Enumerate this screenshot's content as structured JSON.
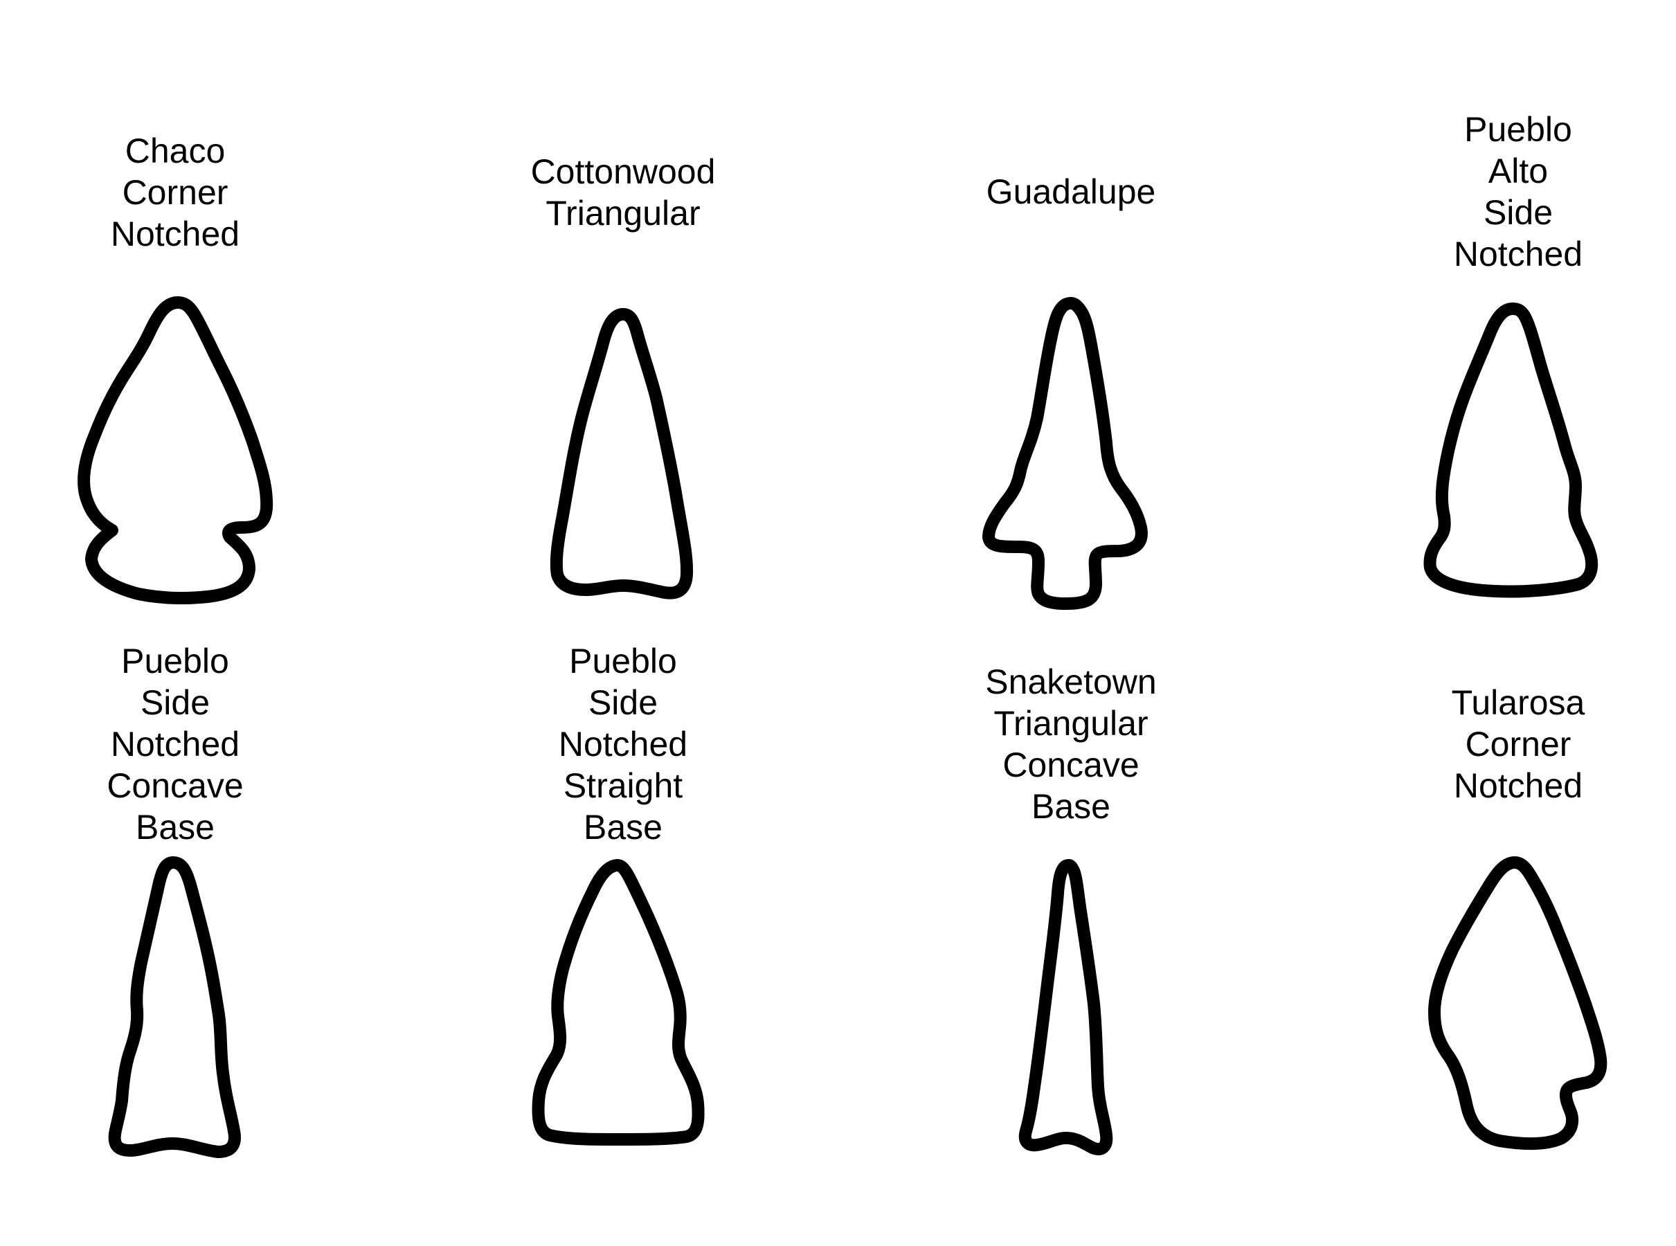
{
  "figure": {
    "stroke_color": "#000000",
    "background": "#ffffff"
  },
  "points": [
    {
      "name": "Chaco\nCorner\nNotched"
    },
    {
      "name": "Cottonwood\nTriangular"
    },
    {
      "name": "Guadalupe"
    },
    {
      "name": "Pueblo\nAlto\nSide\nNotched"
    },
    {
      "name": "Pueblo\nSide\nNotched\nConcave\nBase"
    },
    {
      "name": "Pueblo\nSide\nNotched\nStraight\nBase"
    },
    {
      "name": "Snaketown\nTriangular\nConcave\nBase"
    },
    {
      "name": "Tularosa\nCorner\nNotched"
    }
  ]
}
